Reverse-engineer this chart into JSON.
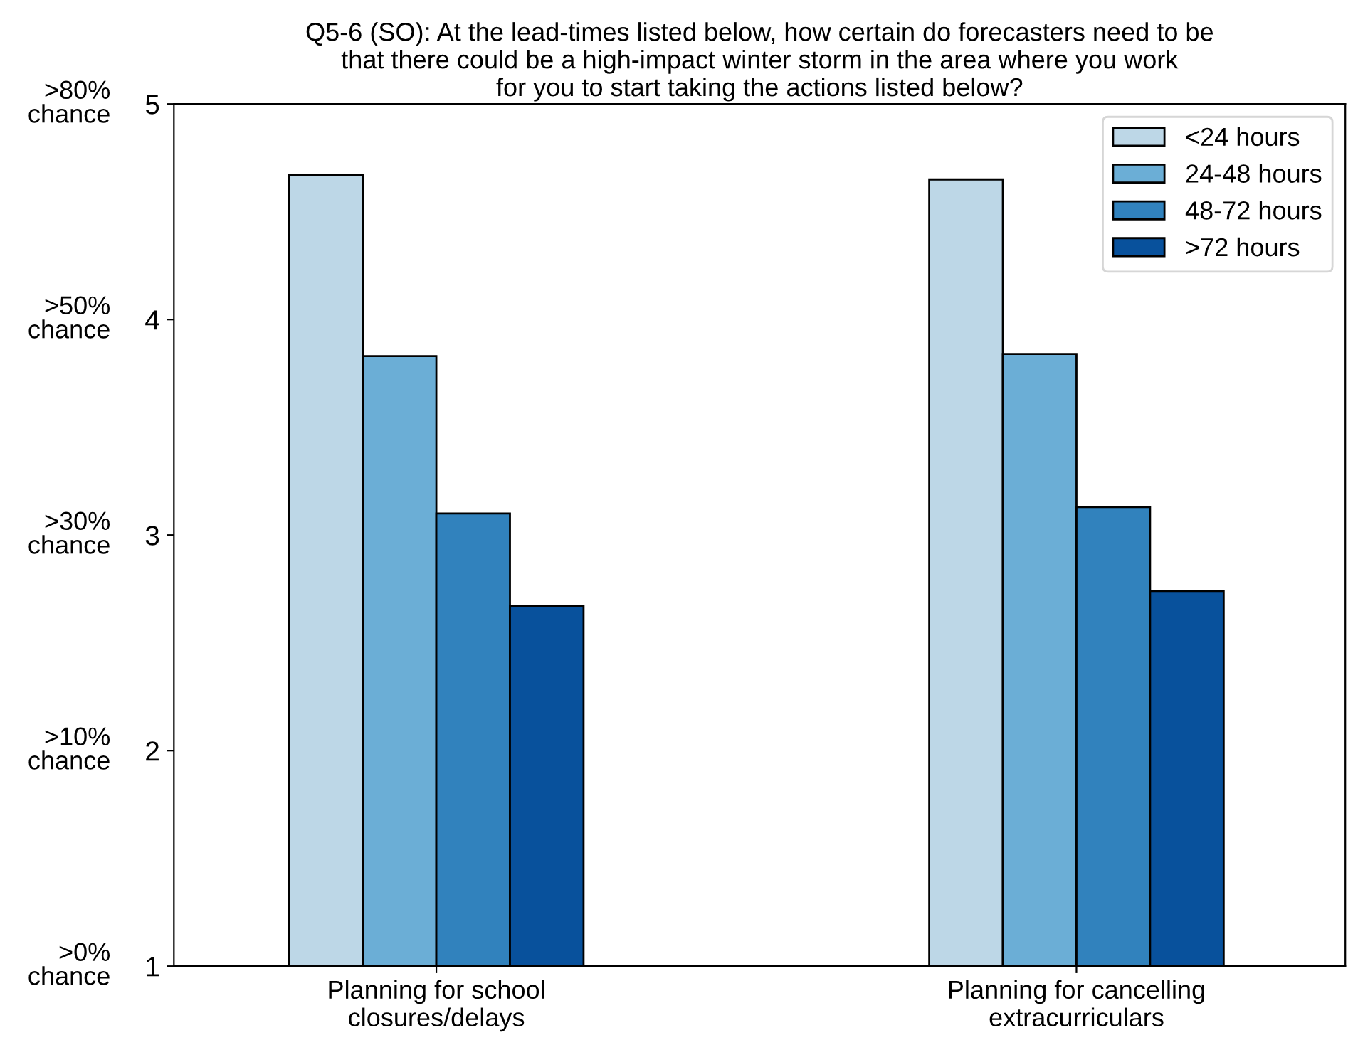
{
  "chart_data": {
    "type": "bar",
    "title": "Q5-6 (SO): At the lead-times listed below, how certain do forecasters need to be\nthat there could be a high-impact winter storm in the area where you work\nfor you to start taking the actions listed below?",
    "categories": [
      "Planning for school\nclosures/delays",
      "Planning for cancelling\nextracurriculars"
    ],
    "series": [
      {
        "name": "<24 hours",
        "color": "#bdd7e7",
        "values": [
          4.67,
          4.65
        ]
      },
      {
        "name": "24-48 hours",
        "color": "#6baed6",
        "values": [
          3.83,
          3.84
        ]
      },
      {
        "name": "48-72 hours",
        "color": "#3182bd",
        "values": [
          3.1,
          3.13
        ]
      },
      {
        "name": ">72 hours",
        "color": "#08519c",
        "values": [
          2.67,
          2.74
        ]
      }
    ],
    "ylim": [
      1,
      5
    ],
    "yticks": [
      1,
      2,
      3,
      4,
      5
    ],
    "annotations": [
      ">0%\nchance",
      ">10%\nchance",
      ">30%\nchance",
      ">50%\nchance",
      ">80%\nchance"
    ],
    "legend": "top right",
    "grid": false
  }
}
